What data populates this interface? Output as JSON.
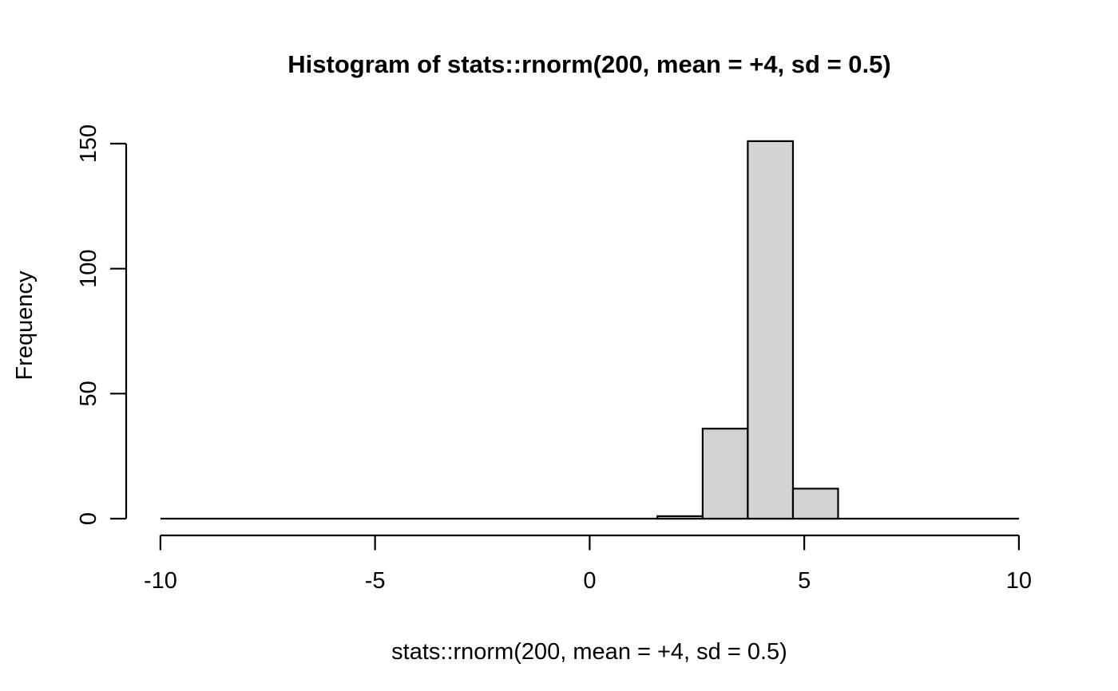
{
  "window": {
    "background": "#FFFFFF"
  },
  "chart_data": {
    "type": "bar",
    "subtype": "histogram",
    "title": "Histogram of stats::rnorm(200, mean = +4, sd = 0.5)",
    "xlabel": "stats::rnorm(200, mean = +4, sd = 0.5)",
    "ylabel": "Frequency",
    "xlim": [
      -10,
      10
    ],
    "ylim": [
      0,
      150
    ],
    "x_ticks": [
      -10,
      -5,
      0,
      5,
      10
    ],
    "y_ticks": [
      0,
      50,
      100,
      150
    ],
    "breaks": [
      -10,
      -8.947,
      -7.895,
      -6.842,
      -5.789,
      -4.737,
      -3.684,
      -2.632,
      -1.579,
      -0.526,
      0.526,
      1.579,
      2.632,
      3.684,
      4.737,
      5.789,
      6.842,
      7.895,
      8.947,
      10
    ],
    "counts": [
      0,
      0,
      0,
      0,
      0,
      0,
      0,
      0,
      0,
      0,
      0,
      1,
      36,
      151,
      12,
      0,
      0,
      0,
      0
    ],
    "total_n": 200,
    "bar_fill": "#D3D3D3",
    "bar_stroke": "#000000",
    "axis_color": "#000000",
    "grid": false
  }
}
